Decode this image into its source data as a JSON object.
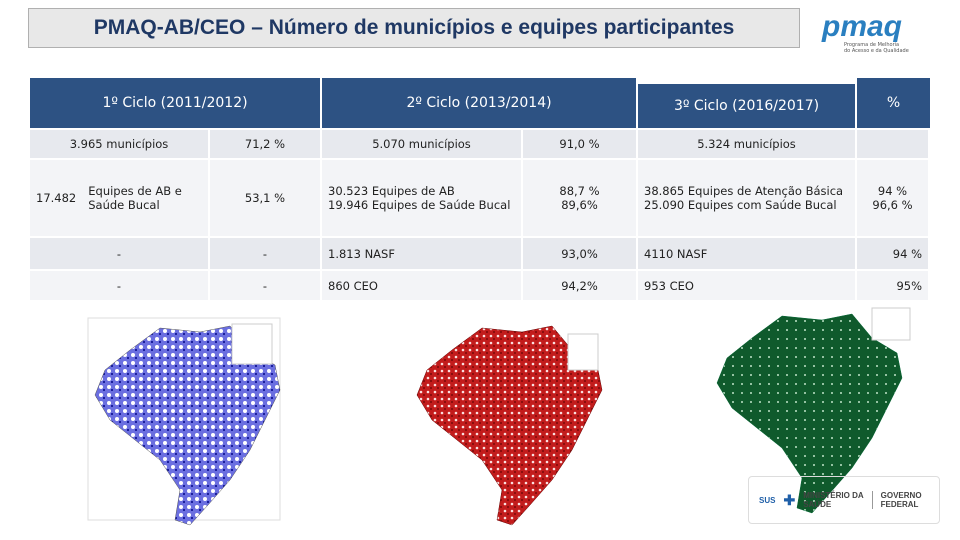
{
  "header": {
    "title": "PMAQ-AB/CEO – Número de municípios e equipes participantes",
    "logo": "pmaq",
    "logo_subtitle": [
      "Programa de Melhoria",
      "do Acesso e da Qualidade"
    ]
  },
  "table": {
    "headers": [
      "1º Ciclo (2011/2012)",
      "2º Ciclo  (2013/2014)",
      "3º Ciclo (2016/2017)",
      "%"
    ],
    "rows": [
      [
        "3.965 municípios",
        "71,2 %",
        "5.070 municípios",
        "91,0 %",
        "5.324 municípios"
      ],
      [
        "17.482",
        "Equipes de AB e Saúde Bucal",
        "53,1 %",
        [
          "30.523 Equipes de AB",
          "19.946 Equipes de Saúde Bucal"
        ],
        [
          "88,7 %",
          "89,6%"
        ],
        [
          "38.865 Equipes de Atenção Básica",
          "25.090 Equipes com Saúde Bucal"
        ],
        [
          "94 %",
          "96,6 %"
        ]
      ],
      [
        "-",
        "-",
        "1.813 NASF",
        "93,0%",
        "4110 NASF",
        "94 %"
      ],
      [
        "-",
        "-",
        "860 CEO",
        "94,2%",
        "953 CEO",
        "95%"
      ]
    ]
  },
  "footer": {
    "sus": "SUS",
    "ministry": [
      "MINISTÉRIO DA",
      "SAÚDE"
    ],
    "government": [
      "GOVERNO",
      "FEDERAL"
    ]
  }
}
